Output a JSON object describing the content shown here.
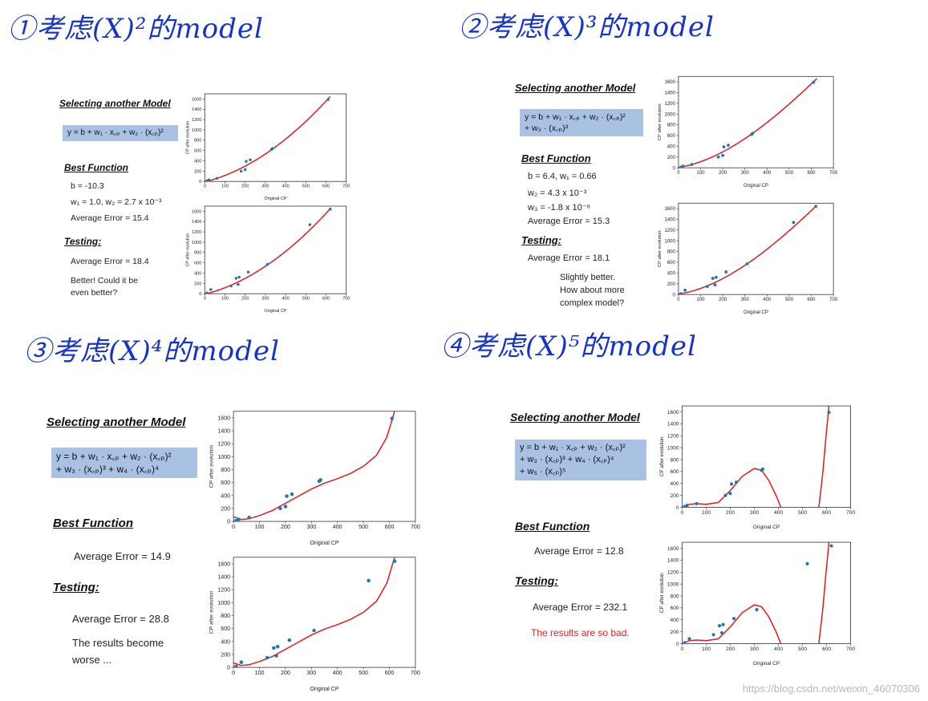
{
  "headings": [
    "①考虑(X)²的model",
    "②考虑(X)³的model",
    "③考虑(X)⁴的model",
    "④考虑(X)⁵的model"
  ],
  "panels": [
    {
      "section_title": "Selecting another Model",
      "formula": [
        "y = b + w₁ · x꜀ₚ + w₂ · (x꜀ₚ)²"
      ],
      "best_function_title": "Best Function",
      "best_lines": [
        "b = -10.3",
        "w₁ = 1.0, w₂ = 2.7 x 10⁻³",
        "Average Error = 15.4"
      ],
      "testing_title": "Testing:",
      "testing_lines": [
        "Average Error = 18.4"
      ],
      "comment": [
        "Better! Could it be",
        "even better?"
      ]
    },
    {
      "section_title": "Selecting another Model",
      "formula": [
        "y = b + w₁ · x꜀ₚ + w₂ · (x꜀ₚ)²",
        "+ w₃ · (x꜀ₚ)³"
      ],
      "best_function_title": "Best Function",
      "best_lines": [
        "b = 6.4, w₁ = 0.66",
        "w₂ = 4.3 x 10⁻³",
        "w₃ = -1.8 x 10⁻⁶",
        "Average Error = 15.3"
      ],
      "testing_title": "Testing:",
      "testing_lines": [
        "Average Error = 18.1"
      ],
      "comment": [
        "Slightly better.",
        "How about more",
        "complex model?"
      ]
    },
    {
      "section_title": "Selecting another Model",
      "formula": [
        "y = b + w₁ · x꜀ₚ + w₂ · (x꜀ₚ)²",
        "+ w₃ · (x꜀ₚ)³ + w₄ · (x꜀ₚ)⁴"
      ],
      "best_function_title": "Best Function",
      "best_lines": [
        "Average Error = 14.9"
      ],
      "testing_title": "Testing:",
      "testing_lines": [
        "Average Error = 28.8"
      ],
      "comment": [
        "The results become",
        "worse ..."
      ]
    },
    {
      "section_title": "Selecting another Model",
      "formula": [
        "y = b + w₁ · x꜀ₚ + w₂ · (x꜀ₚ)²",
        "+ w₃ · (x꜀ₚ)³ + w₄ · (x꜀ₚ)⁴",
        "+ w₅ · (x꜀ₚ)⁵"
      ],
      "best_function_title": "Best Function",
      "best_lines": [
        "Average Error = 12.8"
      ],
      "testing_title": "Testing:",
      "testing_lines": [
        "Average Error = 232.1"
      ],
      "comment": [
        "The results are so bad."
      ],
      "comment_color": "#e02020"
    }
  ],
  "watermark": "https://blog.csdn.net/weixin_46070306",
  "colors": {
    "curve": "#e31a1c",
    "point": "#1f77b4",
    "formula_bg": "#a9c1e3",
    "handwriting": "#1533c8"
  },
  "chart_data": [
    {
      "type": "scatter",
      "panel": 1,
      "role": "training",
      "xlabel": "Original CP",
      "ylabel": "CP after evolution",
      "xlim": [
        0,
        700
      ],
      "ylim": [
        0,
        1700
      ],
      "xticks": [
        0,
        100,
        200,
        300,
        400,
        500,
        600,
        700
      ],
      "yticks": [
        0,
        200,
        400,
        600,
        800,
        1000,
        1200,
        1400,
        1600
      ],
      "points": [
        [
          10,
          10
        ],
        [
          20,
          30
        ],
        [
          60,
          60
        ],
        [
          180,
          200
        ],
        [
          200,
          230
        ],
        [
          205,
          390
        ],
        [
          225,
          420
        ],
        [
          330,
          620
        ],
        [
          335,
          640
        ],
        [
          610,
          1590
        ]
      ],
      "curve": {
        "kind": "poly",
        "coef": [
          -10.3,
          1.0,
          0.0027
        ],
        "xrange": [
          0,
          620
        ]
      }
    },
    {
      "type": "scatter",
      "panel": 1,
      "role": "testing",
      "xlabel": "Original CP",
      "ylabel": "CP after evolution",
      "xlim": [
        0,
        700
      ],
      "ylim": [
        0,
        1700
      ],
      "xticks": [
        0,
        100,
        200,
        300,
        400,
        500,
        600,
        700
      ],
      "yticks": [
        0,
        200,
        400,
        600,
        800,
        1000,
        1200,
        1400,
        1600
      ],
      "points": [
        [
          10,
          15
        ],
        [
          30,
          80
        ],
        [
          130,
          150
        ],
        [
          155,
          300
        ],
        [
          165,
          180
        ],
        [
          170,
          320
        ],
        [
          215,
          420
        ],
        [
          310,
          570
        ],
        [
          520,
          1340
        ],
        [
          620,
          1640
        ]
      ],
      "curve": {
        "kind": "poly",
        "coef": [
          -10.3,
          1.0,
          0.0027
        ],
        "xrange": [
          0,
          625
        ]
      }
    },
    {
      "type": "scatter",
      "panel": 2,
      "role": "training",
      "xlabel": "Original CP",
      "ylabel": "CP after evolution",
      "xlim": [
        0,
        700
      ],
      "ylim": [
        0,
        1700
      ],
      "xticks": [
        0,
        100,
        200,
        300,
        400,
        500,
        600,
        700
      ],
      "yticks": [
        0,
        200,
        400,
        600,
        800,
        1000,
        1200,
        1400,
        1600
      ],
      "points": [
        [
          10,
          10
        ],
        [
          20,
          30
        ],
        [
          60,
          60
        ],
        [
          180,
          200
        ],
        [
          200,
          230
        ],
        [
          205,
          390
        ],
        [
          225,
          420
        ],
        [
          330,
          620
        ],
        [
          335,
          640
        ],
        [
          610,
          1590
        ]
      ],
      "curve": {
        "kind": "poly",
        "coef": [
          6.4,
          0.66,
          0.0043,
          -1.8e-06
        ],
        "xrange": [
          0,
          625
        ]
      }
    },
    {
      "type": "scatter",
      "panel": 2,
      "role": "testing",
      "xlabel": "Original CP",
      "ylabel": "CP after evolution",
      "xlim": [
        0,
        700
      ],
      "ylim": [
        0,
        1700
      ],
      "xticks": [
        0,
        100,
        200,
        300,
        400,
        500,
        600,
        700
      ],
      "yticks": [
        0,
        200,
        400,
        600,
        800,
        1000,
        1200,
        1400,
        1600
      ],
      "points": [
        [
          10,
          15
        ],
        [
          30,
          80
        ],
        [
          130,
          150
        ],
        [
          155,
          300
        ],
        [
          165,
          180
        ],
        [
          170,
          320
        ],
        [
          215,
          420
        ],
        [
          310,
          570
        ],
        [
          520,
          1340
        ],
        [
          620,
          1640
        ]
      ],
      "curve": {
        "kind": "poly",
        "coef": [
          6.4,
          0.66,
          0.0043,
          -1.8e-06
        ],
        "xrange": [
          0,
          625
        ]
      }
    },
    {
      "type": "scatter",
      "panel": 3,
      "role": "training",
      "xlabel": "Original CP",
      "ylabel": "CP after evolution",
      "xlim": [
        0,
        700
      ],
      "ylim": [
        0,
        1700
      ],
      "xticks": [
        0,
        100,
        200,
        300,
        400,
        500,
        600,
        700
      ],
      "yticks": [
        0,
        200,
        400,
        600,
        800,
        1000,
        1200,
        1400,
        1600
      ],
      "points": [
        [
          10,
          10
        ],
        [
          20,
          30
        ],
        [
          60,
          60
        ],
        [
          180,
          200
        ],
        [
          200,
          230
        ],
        [
          205,
          390
        ],
        [
          225,
          420
        ],
        [
          330,
          620
        ],
        [
          335,
          640
        ],
        [
          610,
          1590
        ]
      ],
      "curve": {
        "kind": "path",
        "pts": [
          [
            0,
            70
          ],
          [
            30,
            30
          ],
          [
            60,
            40
          ],
          [
            100,
            90
          ],
          [
            150,
            170
          ],
          [
            200,
            280
          ],
          [
            250,
            390
          ],
          [
            300,
            500
          ],
          [
            350,
            590
          ],
          [
            400,
            660
          ],
          [
            450,
            740
          ],
          [
            500,
            850
          ],
          [
            550,
            1020
          ],
          [
            590,
            1300
          ],
          [
            620,
            1700
          ]
        ]
      }
    },
    {
      "type": "scatter",
      "panel": 3,
      "role": "testing",
      "xlabel": "Original CP",
      "ylabel": "CP after evolution",
      "xlim": [
        0,
        700
      ],
      "ylim": [
        0,
        1700
      ],
      "xticks": [
        0,
        100,
        200,
        300,
        400,
        500,
        600,
        700
      ],
      "yticks": [
        0,
        200,
        400,
        600,
        800,
        1000,
        1200,
        1400,
        1600
      ],
      "points": [
        [
          10,
          15
        ],
        [
          30,
          80
        ],
        [
          130,
          150
        ],
        [
          155,
          300
        ],
        [
          165,
          180
        ],
        [
          170,
          320
        ],
        [
          215,
          420
        ],
        [
          310,
          570
        ],
        [
          520,
          1340
        ],
        [
          620,
          1640
        ]
      ],
      "curve": {
        "kind": "path",
        "pts": [
          [
            0,
            70
          ],
          [
            30,
            30
          ],
          [
            60,
            40
          ],
          [
            100,
            90
          ],
          [
            150,
            170
          ],
          [
            200,
            280
          ],
          [
            250,
            390
          ],
          [
            300,
            500
          ],
          [
            350,
            590
          ],
          [
            400,
            660
          ],
          [
            450,
            740
          ],
          [
            500,
            850
          ],
          [
            550,
            1020
          ],
          [
            590,
            1300
          ],
          [
            620,
            1700
          ]
        ]
      }
    },
    {
      "type": "scatter",
      "panel": 4,
      "role": "training",
      "xlabel": "Original CP",
      "ylabel": "CP after evolution",
      "xlim": [
        0,
        700
      ],
      "ylim": [
        0,
        1700
      ],
      "xticks": [
        0,
        100,
        200,
        300,
        400,
        500,
        600,
        700
      ],
      "yticks": [
        0,
        200,
        400,
        600,
        800,
        1000,
        1200,
        1400,
        1600
      ],
      "points": [
        [
          10,
          10
        ],
        [
          20,
          30
        ],
        [
          60,
          60
        ],
        [
          180,
          200
        ],
        [
          200,
          230
        ],
        [
          205,
          390
        ],
        [
          225,
          420
        ],
        [
          330,
          620
        ],
        [
          335,
          640
        ],
        [
          610,
          1590
        ]
      ],
      "curve": {
        "kind": "path",
        "pts": [
          [
            0,
            0
          ],
          [
            30,
            50
          ],
          [
            60,
            60
          ],
          [
            100,
            50
          ],
          [
            150,
            80
          ],
          [
            200,
            280
          ],
          [
            250,
            520
          ],
          [
            300,
            650
          ],
          [
            330,
            620
          ],
          [
            360,
            450
          ],
          [
            390,
            200
          ],
          [
            410,
            0
          ]
        ]
      },
      "curve2": {
        "kind": "path",
        "pts": [
          [
            568,
            0
          ],
          [
            585,
            600
          ],
          [
            598,
            1200
          ],
          [
            610,
            1700
          ]
        ]
      }
    },
    {
      "type": "scatter",
      "panel": 4,
      "role": "testing",
      "xlabel": "Original CP",
      "ylabel": "CP after evolution",
      "xlim": [
        0,
        700
      ],
      "ylim": [
        0,
        1700
      ],
      "xticks": [
        0,
        100,
        200,
        300,
        400,
        500,
        600,
        700
      ],
      "yticks": [
        0,
        200,
        400,
        600,
        800,
        1000,
        1200,
        1400,
        1600
      ],
      "points": [
        [
          10,
          15
        ],
        [
          30,
          80
        ],
        [
          130,
          150
        ],
        [
          155,
          300
        ],
        [
          165,
          180
        ],
        [
          170,
          320
        ],
        [
          215,
          420
        ],
        [
          310,
          570
        ],
        [
          520,
          1340
        ],
        [
          620,
          1640
        ]
      ],
      "curve": {
        "kind": "path",
        "pts": [
          [
            0,
            0
          ],
          [
            30,
            50
          ],
          [
            60,
            60
          ],
          [
            100,
            50
          ],
          [
            150,
            80
          ],
          [
            200,
            280
          ],
          [
            250,
            520
          ],
          [
            300,
            650
          ],
          [
            330,
            620
          ],
          [
            360,
            450
          ],
          [
            390,
            200
          ],
          [
            410,
            0
          ]
        ]
      },
      "curve2": {
        "kind": "path",
        "pts": [
          [
            568,
            0
          ],
          [
            585,
            600
          ],
          [
            598,
            1200
          ],
          [
            610,
            1700
          ]
        ]
      }
    }
  ]
}
